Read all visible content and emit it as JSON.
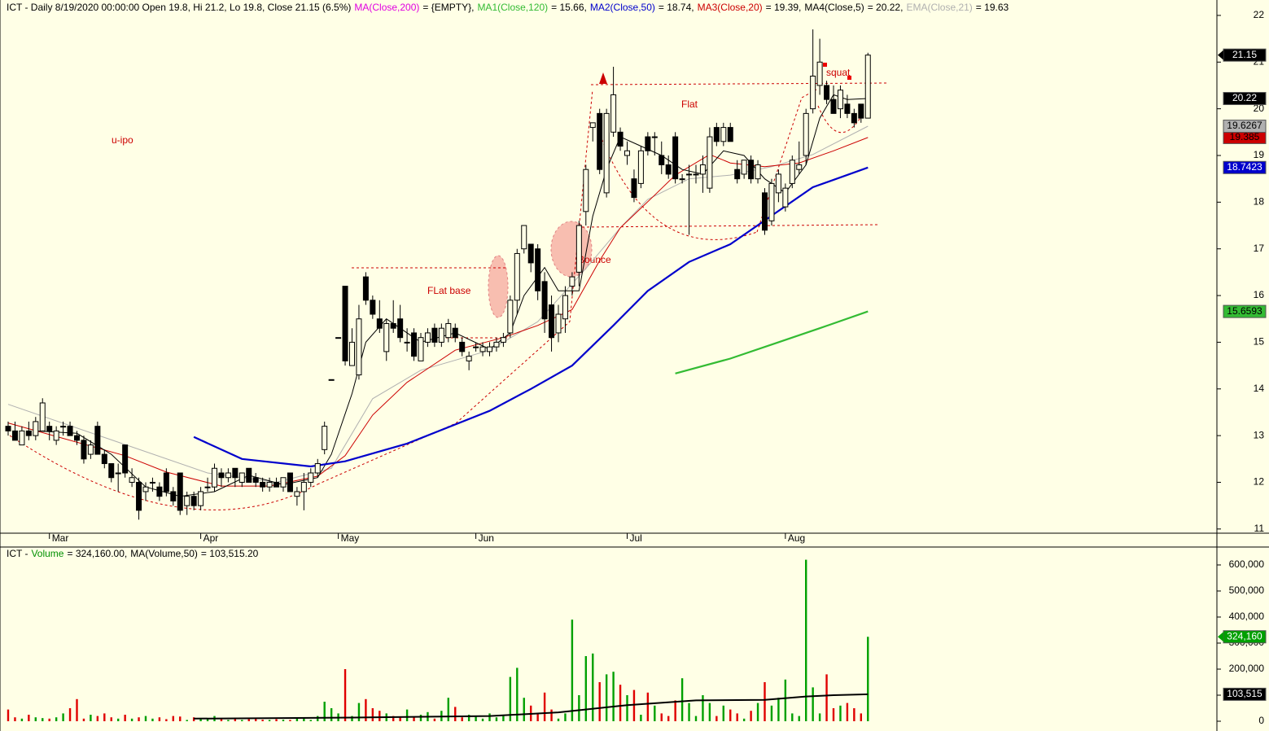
{
  "chart_data": [
    {
      "type": "candlestick",
      "title": "ICT - Daily 8/19/2020 00:00:00 Open 19.8, Hi 21.2, Lo 19.8, Close 21.15 (6.5%)",
      "categories": [
        null,
        null,
        null,
        null,
        null,
        null,
        "Mar",
        null,
        null,
        null,
        null,
        null,
        null,
        null,
        null,
        null,
        null,
        null,
        null,
        null,
        null,
        null,
        null,
        null,
        null,
        null,
        null,
        null,
        "Apr",
        null,
        null,
        null,
        null,
        null,
        null,
        null,
        null,
        null,
        null,
        null,
        null,
        null,
        null,
        null,
        null,
        null,
        null,
        null,
        "May",
        null,
        null,
        null,
        null,
        null,
        null,
        null,
        null,
        null,
        null,
        null,
        null,
        null,
        null,
        null,
        null,
        null,
        null,
        null,
        "Jun",
        null,
        null,
        null,
        null,
        null,
        null,
        null,
        null,
        null,
        null,
        null,
        null,
        null,
        null,
        null,
        null,
        null,
        null,
        null,
        null,
        null,
        "Jul",
        null,
        null,
        null,
        null,
        null,
        null,
        null,
        null,
        null,
        null,
        null,
        null,
        null,
        null,
        null,
        null,
        null,
        null,
        null,
        null,
        null,
        null,
        "Aug",
        null,
        null,
        null,
        null,
        null,
        null,
        null,
        null,
        null,
        null,
        null,
        null
      ],
      "open": [
        13.2,
        13.1,
        12.8,
        13.1,
        13.0,
        13.1,
        13.2,
        12.9,
        13.2,
        13.2,
        13.0,
        12.9,
        12.6,
        13.2,
        12.6,
        12.4,
        12.2,
        12.8,
        12.0,
        12.0,
        11.8,
        12.0,
        11.9,
        12.2,
        11.8,
        12.2,
        11.5,
        11.7,
        11.5,
        11.9,
        11.9,
        12.2,
        12.1,
        12.3,
        12.0,
        12.3,
        12.1,
        12.0,
        11.9,
        12.0,
        11.9,
        12.2,
        11.7,
        11.8,
        12.0,
        12.2,
        12.7,
        14.2,
        15.1,
        16.2,
        14.5,
        14.3,
        16.4,
        15.9,
        15.5,
        14.8,
        15.4,
        15.5,
        15.0,
        15.2,
        14.6,
        15.0,
        15.3,
        15.0,
        15.1,
        15.3,
        15.0,
        14.6,
        14.9,
        14.8,
        14.8,
        14.9,
        15.0,
        15.2,
        15.9,
        17.0,
        17.1,
        17.0,
        16.3,
        15.8,
        15.2,
        15.5,
        16.2,
        16.5,
        17.8,
        19.6,
        19.9,
        18.2,
        19.5,
        19.5,
        19.0,
        18.5,
        18.4,
        19.4,
        19.4,
        19.0,
        18.8,
        19.4,
        18.5,
        18.6,
        18.6,
        18.6,
        18.3,
        19.6,
        19.3,
        19.6,
        18.7,
        18.6,
        18.9,
        18.5,
        18.2,
        17.6,
        18.2,
        17.9,
        18.4,
        18.7,
        19.0,
        20.0,
        20.5,
        20.5,
        20.2,
        20.0,
        20.1,
        19.9,
        20.1,
        19.8
      ],
      "high": [
        13.3,
        13.3,
        13.2,
        13.3,
        13.4,
        13.8,
        13.3,
        13.2,
        13.3,
        13.3,
        13.1,
        13.0,
        12.9,
        13.3,
        12.7,
        12.4,
        12.4,
        12.8,
        12.3,
        12.1,
        12.0,
        12.1,
        12.0,
        12.3,
        11.9,
        12.2,
        11.8,
        11.8,
        11.9,
        12.1,
        12.4,
        12.3,
        12.3,
        12.3,
        12.2,
        12.3,
        12.2,
        12.1,
        12.1,
        12.1,
        12.1,
        12.2,
        11.9,
        12.2,
        12.3,
        12.5,
        13.3,
        14.2,
        15.1,
        16.2,
        15.3,
        15.8,
        16.5,
        16.0,
        15.9,
        15.5,
        15.9,
        15.8,
        15.3,
        15.3,
        15.2,
        15.3,
        15.4,
        15.4,
        15.5,
        15.4,
        15.1,
        14.8,
        15.0,
        15.0,
        15.0,
        15.1,
        15.2,
        16.0,
        17.0,
        17.5,
        17.1,
        17.1,
        16.5,
        16.0,
        15.8,
        16.2,
        16.5,
        17.6,
        18.8,
        19.7,
        20.0,
        20.0,
        20.9,
        19.6,
        19.3,
        18.7,
        19.2,
        19.5,
        19.5,
        19.3,
        19.0,
        19.5,
        18.6,
        18.8,
        18.8,
        19.0,
        19.6,
        19.7,
        19.7,
        19.7,
        18.9,
        18.9,
        19.0,
        18.9,
        18.3,
        18.5,
        18.7,
        18.4,
        19.0,
        19.3,
        20.0,
        21.7,
        21.5,
        20.6,
        20.5,
        20.5,
        20.3,
        20.0,
        20.1,
        21.2
      ],
      "low": [
        13.0,
        12.9,
        12.8,
        12.9,
        12.9,
        13.1,
        12.9,
        12.8,
        13.0,
        13.0,
        12.8,
        12.4,
        12.5,
        12.6,
        12.3,
        12.0,
        11.8,
        12.1,
        11.9,
        11.2,
        11.6,
        11.8,
        11.6,
        11.7,
        11.5,
        11.3,
        11.3,
        11.4,
        11.4,
        11.8,
        11.8,
        11.9,
        12.0,
        11.9,
        11.9,
        12.0,
        11.9,
        11.8,
        11.8,
        11.9,
        11.8,
        11.8,
        11.5,
        11.4,
        11.9,
        12.1,
        12.6,
        14.2,
        15.1,
        14.5,
        14.5,
        14.2,
        15.8,
        15.5,
        15.2,
        14.6,
        15.2,
        15.0,
        14.8,
        14.6,
        14.6,
        14.9,
        14.9,
        14.9,
        15.0,
        15.0,
        14.7,
        14.4,
        14.8,
        14.7,
        14.7,
        14.8,
        14.9,
        15.1,
        15.6,
        16.9,
        16.5,
        15.9,
        15.2,
        14.8,
        15.0,
        15.2,
        16.0,
        16.2,
        17.5,
        19.3,
        18.6,
        18.1,
        19.4,
        19.1,
        18.8,
        18.0,
        18.3,
        19.0,
        19.0,
        18.6,
        18.5,
        18.4,
        18.4,
        17.3,
        18.4,
        18.2,
        18.2,
        19.2,
        19.2,
        19.3,
        18.4,
        18.5,
        18.4,
        18.4,
        17.3,
        17.5,
        18.0,
        17.8,
        18.3,
        18.6,
        18.8,
        19.9,
        20.3,
        20.1,
        19.9,
        19.8,
        19.8,
        19.6,
        19.7,
        19.8
      ],
      "close": [
        13.1,
        12.9,
        13.1,
        13.0,
        13.3,
        13.7,
        13.1,
        13.1,
        13.2,
        13.0,
        12.9,
        12.5,
        12.8,
        12.6,
        12.4,
        12.1,
        12.2,
        12.2,
        12.1,
        11.4,
        11.9,
        12.0,
        11.7,
        11.8,
        11.6,
        11.4,
        11.7,
        11.5,
        11.8,
        11.9,
        12.3,
        12.1,
        12.2,
        12.1,
        12.2,
        12.0,
        12.0,
        11.9,
        12.0,
        11.9,
        12.1,
        11.8,
        11.8,
        12.0,
        12.2,
        12.4,
        13.2,
        14.2,
        15.1,
        14.6,
        15.0,
        15.5,
        15.9,
        15.6,
        15.3,
        15.4,
        15.3,
        15.1,
        15.0,
        14.7,
        15.1,
        15.2,
        15.0,
        15.3,
        15.4,
        15.1,
        14.8,
        14.7,
        14.9,
        14.9,
        14.9,
        15.0,
        15.1,
        15.9,
        16.9,
        17.5,
        16.7,
        16.1,
        15.5,
        15.1,
        15.6,
        16.0,
        16.4,
        17.5,
        18.7,
        19.7,
        18.7,
        19.9,
        20.3,
        19.2,
        19.1,
        18.1,
        19.1,
        19.1,
        19.4,
        18.8,
        18.6,
        18.5,
        18.5,
        18.6,
        18.6,
        18.8,
        19.4,
        19.3,
        19.6,
        19.3,
        18.5,
        18.9,
        18.5,
        18.8,
        17.4,
        18.4,
        18.6,
        18.3,
        18.9,
        18.8,
        19.9,
        20.7,
        21.0,
        20.2,
        19.9,
        20.4,
        19.9,
        19.7,
        19.8,
        21.15
      ],
      "up_color": "#ffffe6",
      "down_color": "#000000",
      "series": [
        {
          "name": "MA(Close,200)",
          "color": "#e000e0",
          "legend_value": "= {EMPTY},",
          "x": [],
          "values": []
        },
        {
          "name": "MA1(Close,120)",
          "color": "#33bb33",
          "legend_value": "= 15.66,",
          "badge_text": "#000000",
          "x": [
            97,
            105,
            112,
            118,
            125
          ],
          "values": [
            14.33,
            14.65,
            15.0,
            15.3,
            15.6593
          ]
        },
        {
          "name": "MA2(Close,50)",
          "color": "#0000cc",
          "legend_value": "= 18.74,",
          "badge_text": "#ffffff",
          "x": [
            27,
            34,
            44,
            49,
            58,
            70,
            76,
            82,
            88,
            93,
            99,
            105,
            111,
            117,
            125
          ],
          "values": [
            12.97,
            12.5,
            12.34,
            12.45,
            12.83,
            13.53,
            14.0,
            14.5,
            15.36,
            16.1,
            16.72,
            17.1,
            17.71,
            18.32,
            18.7423
          ]
        },
        {
          "name": "MA3(Close,20)",
          "color": "#cc0000",
          "legend_value": "= 19.39,",
          "badge_text": "#000000",
          "x": [
            0,
            17,
            23,
            31,
            38,
            45,
            49,
            53,
            58,
            65,
            72,
            77,
            82,
            86,
            89,
            94,
            97,
            102,
            105,
            110,
            115,
            120,
            125
          ],
          "values": [
            13.27,
            12.57,
            12.22,
            11.92,
            11.92,
            12.13,
            12.57,
            13.44,
            14.14,
            14.83,
            15.1,
            15.36,
            15.7,
            16.75,
            17.45,
            18.15,
            18.58,
            19.02,
            18.84,
            18.76,
            18.84,
            19.1,
            19.385
          ]
        },
        {
          "name": "MA4(Close,5)",
          "color": "#000000",
          "legend_value": "= 20.22,",
          "badge_text": "#ffffff",
          "x": [
            4,
            10,
            15,
            20,
            25,
            30,
            35,
            40,
            45,
            47,
            50,
            52,
            55,
            60,
            65,
            70,
            73,
            75,
            78,
            80,
            83,
            85,
            87,
            89,
            92,
            95,
            98,
            101,
            104,
            107,
            110,
            113,
            116,
            118,
            120,
            122,
            125
          ],
          "values": [
            13.1,
            13.05,
            12.6,
            11.9,
            11.7,
            11.8,
            12.15,
            11.95,
            12.1,
            12.6,
            13.9,
            15.0,
            15.5,
            15.0,
            15.2,
            14.85,
            15.2,
            16.0,
            16.6,
            16.1,
            16.1,
            17.7,
            18.7,
            19.4,
            19.2,
            19.0,
            18.7,
            18.6,
            19.1,
            19.0,
            18.5,
            18.2,
            18.8,
            19.8,
            20.3,
            20.2,
            20.22
          ]
        },
        {
          "name": "EMA(Close,21)",
          "color": "#b0b0b0",
          "legend_value": "= 19.63",
          "badge_text": "#000000",
          "x": [
            0,
            29,
            39,
            47,
            53,
            60,
            70,
            77,
            84,
            89,
            93,
            99,
            105,
            111,
            117,
            125
          ],
          "values": [
            13.67,
            12.2,
            12.0,
            12.3,
            13.79,
            14.4,
            14.83,
            15.44,
            16.58,
            17.45,
            18.06,
            18.5,
            18.58,
            18.76,
            19.02,
            19.6267
          ]
        }
      ],
      "annotations": [
        "u-ipo",
        "FLat base",
        "Bounce",
        "Flat",
        "squat"
      ],
      "ylim": [
        10.91,
        22.33
      ],
      "yticks": [
        11,
        12,
        13,
        14,
        15,
        16,
        17,
        18,
        19,
        20,
        21,
        22
      ]
    },
    {
      "type": "bar",
      "title": "ICT -",
      "up_color": "#00a000",
      "down_color": "#e00000",
      "series": [
        {
          "name": "Volume",
          "color": "#009000",
          "legend_value": "= 324,160.00,",
          "values": [
            45000,
            15000,
            10000,
            25000,
            15000,
            12000,
            10000,
            15000,
            30000,
            50000,
            85000,
            10000,
            25000,
            20000,
            30000,
            15000,
            10000,
            25000,
            10000,
            15000,
            20000,
            10000,
            15000,
            8000,
            20000,
            18000,
            5000,
            15000,
            8000,
            8000,
            20000,
            8000,
            5000,
            10000,
            5000,
            8000,
            10000,
            6000,
            5000,
            8000,
            6000,
            5000,
            10000,
            15000,
            5000,
            20000,
            75000,
            50000,
            30000,
            200000,
            20000,
            70000,
            85000,
            50000,
            40000,
            30000,
            20000,
            15000,
            45000,
            15000,
            25000,
            35000,
            10000,
            40000,
            90000,
            55000,
            15000,
            25000,
            20000,
            10000,
            30000,
            15000,
            20000,
            170000,
            205000,
            90000,
            60000,
            30000,
            110000,
            45000,
            10000,
            30000,
            390000,
            100000,
            250000,
            260000,
            150000,
            180000,
            190000,
            140000,
            100000,
            120000,
            25000,
            110000,
            60000,
            30000,
            20000,
            80000,
            165000,
            70000,
            20000,
            100000,
            70000,
            20000,
            60000,
            45000,
            30000,
            10000,
            40000,
            70000,
            150000,
            60000,
            90000,
            160000,
            30000,
            20000,
            620000,
            130000,
            30000,
            180000,
            50000,
            60000,
            70000,
            50000,
            30000,
            324160
          ],
          "last_label": {
            "value": 324160,
            "label": "324,160"
          }
        },
        {
          "name": "MA(Volume,50)",
          "color": "#000000",
          "legend_value": "= 103,515.20",
          "x": [
            27,
            50,
            70,
            80,
            90,
            100,
            110,
            116,
            120,
            125
          ],
          "values": [
            10000,
            14000,
            20000,
            34000,
            62000,
            80000,
            82000,
            95000,
            100000,
            103515.2
          ],
          "last_label": {
            "value": 103515.2,
            "label": "103,515"
          }
        }
      ],
      "ylim": [
        -18750,
        668750
      ],
      "yticks": [
        0,
        {
          "value": 100000,
          "label": "100,000"
        },
        {
          "value": 200000,
          "label": "200,000"
        },
        {
          "value": 300000,
          "label": "300,000"
        },
        {
          "value": 400000,
          "label": "400,000"
        },
        {
          "value": 500000,
          "label": "500,000"
        },
        {
          "value": 600000,
          "label": "600,000"
        }
      ]
    }
  ]
}
